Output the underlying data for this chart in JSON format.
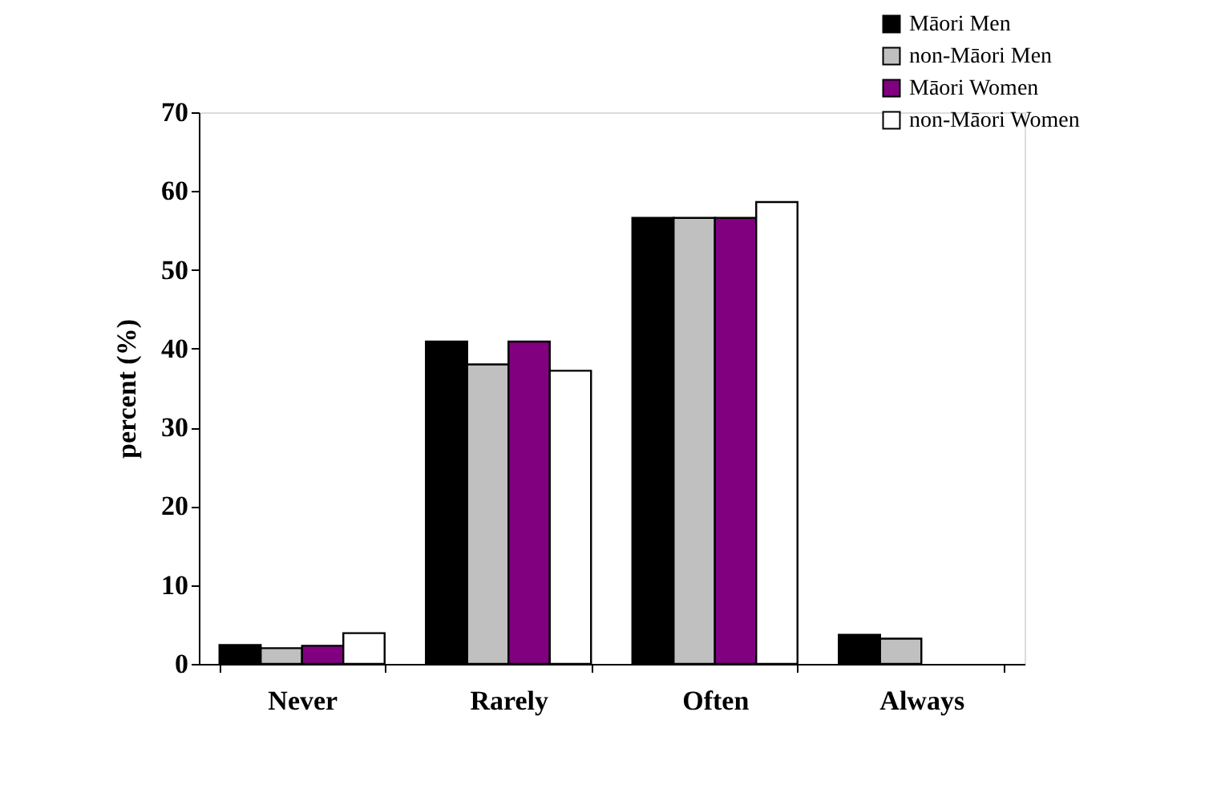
{
  "chart_data": {
    "type": "bar",
    "ylabel": "percent (%)",
    "categories": [
      "Never",
      "Rarely",
      "Often",
      "Always"
    ],
    "series": [
      {
        "name": "Māori Men",
        "color": "#000000",
        "values": [
          2.4,
          40.9,
          56.6,
          3.7
        ]
      },
      {
        "name": "non-Māori Men",
        "color": "#c0c0c0",
        "values": [
          2.0,
          38.0,
          56.6,
          3.2
        ]
      },
      {
        "name": "Māori Women",
        "color": "#800080",
        "values": [
          2.3,
          40.9,
          56.6,
          null
        ]
      },
      {
        "name": "non-Māori Women",
        "color": "#ffffff",
        "values": [
          3.9,
          37.2,
          58.6,
          null
        ]
      }
    ],
    "ylim": [
      0,
      70
    ],
    "yticks": [
      0,
      10,
      20,
      30,
      40,
      50,
      60,
      70
    ],
    "grid": false,
    "legend": "top right"
  }
}
